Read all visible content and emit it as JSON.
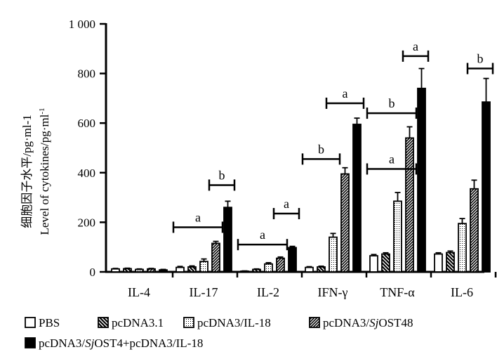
{
  "chart_data": {
    "type": "bar",
    "ylabel_cn": "细胞因子水平/pg·ml-1",
    "ylabel_en": "Level of cytokines/pg·ml",
    "ylabel_en_sup": "-1",
    "ylim": [
      0,
      1000
    ],
    "yticks": [
      "0",
      "200",
      "400",
      "600",
      "800",
      "1 000"
    ],
    "ytick_values": [
      0,
      200,
      400,
      600,
      800,
      1000
    ],
    "categories": [
      "IL-4",
      "IL-17",
      "IL-2",
      "IFN-γ",
      "TNF-α",
      "IL-6"
    ],
    "series": [
      {
        "name": "PBS",
        "pattern": "white",
        "values": [
          12,
          18,
          3,
          18,
          65,
          72
        ],
        "errors": [
          2,
          4,
          1,
          3,
          5,
          5
        ]
      },
      {
        "name": "pcDNA3.1",
        "pattern": "diag-back",
        "values": [
          13,
          20,
          10,
          20,
          72,
          78
        ],
        "errors": [
          2,
          4,
          2,
          3,
          5,
          6
        ]
      },
      {
        "name": "pcDNA3/IL-18",
        "pattern": "dots",
        "values": [
          10,
          42,
          32,
          140,
          285,
          195
        ],
        "errors": [
          2,
          10,
          5,
          15,
          35,
          20
        ]
      },
      {
        "name": "pcDNA3/SjOST48",
        "pattern": "diag-fwd",
        "values": [
          12,
          115,
          55,
          395,
          540,
          335
        ],
        "errors": [
          2,
          8,
          5,
          25,
          45,
          35
        ]
      },
      {
        "name": "pcDNA3/SjOST4+pcDNA3/IL-18",
        "pattern": "black",
        "values": [
          8,
          260,
          98,
          595,
          740,
          685
        ],
        "errors": [
          2,
          25,
          5,
          25,
          80,
          95
        ]
      }
    ],
    "legend": {
      "row1": [
        {
          "pattern": "white",
          "text": "PBS"
        },
        {
          "pattern": "diag-back",
          "text": "pcDNA3.1"
        },
        {
          "pattern": "dots",
          "text": "pcDNA3/IL-18"
        },
        {
          "pattern": "diag-fwd",
          "pre": "pcDNA3/",
          "ital": "Sj",
          "post": "OST48"
        }
      ],
      "row2": [
        {
          "pattern": "black",
          "pre": "pcDNA3/",
          "ital": "Sj",
          "post": "OST4+pcDNA3/IL-18"
        }
      ]
    },
    "significance": [
      {
        "category": 1,
        "label": "a",
        "from_series": 0,
        "to_series": 3,
        "y": 180
      },
      {
        "category": 1,
        "label": "b",
        "from_series": 3,
        "to_series": 4,
        "y": 350
      },
      {
        "category": 2,
        "label": "a",
        "from_series": 0,
        "to_series": 3,
        "y": 110
      },
      {
        "category": 2,
        "label": "a",
        "from_series": 3,
        "to_series": 4,
        "y": 235
      },
      {
        "category": 3,
        "label": "b",
        "from_series": 0,
        "to_series": 2,
        "y": 455
      },
      {
        "category": 3,
        "label": "a",
        "from_series": 2,
        "to_series": 4,
        "y": 680
      },
      {
        "category": 4,
        "label": "b",
        "from_series": 0,
        "to_series": 3,
        "y": 640
      },
      {
        "category": 4,
        "label": "a",
        "from_series": 3,
        "to_series": 4,
        "y": 870
      },
      {
        "category": 4,
        "label": "a",
        "from_series": 0,
        "to_series": 3,
        "y": 415
      },
      {
        "category": 5,
        "label": "b",
        "from_series": 3,
        "to_series": 4,
        "y": 820
      }
    ]
  }
}
